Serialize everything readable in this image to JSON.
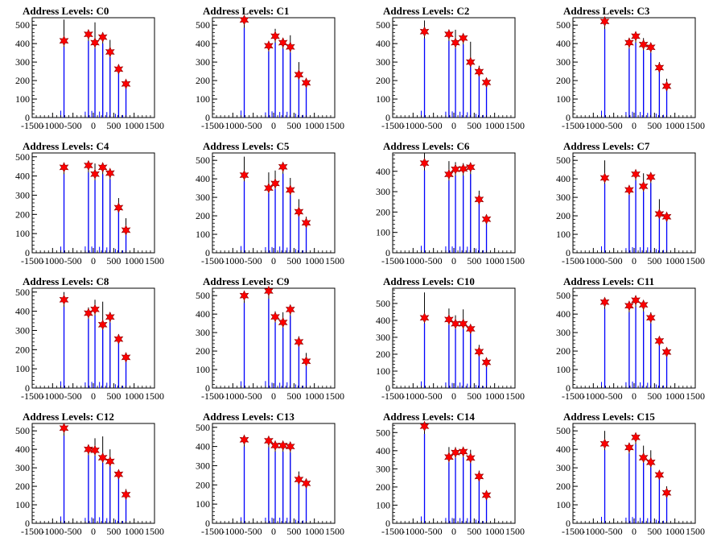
{
  "chart_data": {
    "type": "bar",
    "xlim": [
      -1500,
      1500
    ],
    "x_ticks": [
      -1500,
      -1000,
      -500,
      0,
      500,
      1000,
      1500
    ],
    "x_tick_labels": [
      "-1500",
      "-1000",
      "-500",
      "0",
      "500",
      "1000",
      "1500"
    ],
    "marker_color": "#ff0000",
    "bar_color": "#0000ff",
    "panels": [
      {
        "title": "Address Levels: C0",
        "ylim": [
          0,
          540
        ],
        "y_ticks": [
          0,
          100,
          200,
          300,
          400,
          500
        ],
        "bars": [
          [
            -720,
            530
          ],
          [
            -120,
            455
          ],
          [
            40,
            515
          ],
          [
            230,
            460
          ],
          [
            410,
            420
          ],
          [
            620,
            285
          ],
          [
            800,
            195
          ]
        ],
        "markers": [
          [
            -720,
            415
          ],
          [
            -120,
            450
          ],
          [
            40,
            405
          ],
          [
            230,
            435
          ],
          [
            410,
            355
          ],
          [
            620,
            262
          ],
          [
            800,
            182
          ]
        ]
      },
      {
        "title": "Address Levels: C1",
        "ylim": [
          0,
          540
        ],
        "y_ticks": [
          0,
          100,
          200,
          300,
          400,
          500
        ],
        "bars": [
          [
            -720,
            540
          ],
          [
            -120,
            400
          ],
          [
            40,
            480
          ],
          [
            230,
            430
          ],
          [
            410,
            445
          ],
          [
            620,
            300
          ],
          [
            800,
            200
          ]
        ],
        "markers": [
          [
            -720,
            528
          ],
          [
            -120,
            388
          ],
          [
            40,
            440
          ],
          [
            230,
            405
          ],
          [
            410,
            382
          ],
          [
            620,
            232
          ],
          [
            800,
            188
          ]
        ]
      },
      {
        "title": "Address Levels: C2",
        "ylim": [
          0,
          540
        ],
        "y_ticks": [
          0,
          100,
          200,
          300,
          400,
          500
        ],
        "bars": [
          [
            -720,
            525
          ],
          [
            -120,
            455
          ],
          [
            40,
            475
          ],
          [
            230,
            450
          ],
          [
            410,
            410
          ],
          [
            620,
            280
          ],
          [
            800,
            195
          ]
        ],
        "markers": [
          [
            -720,
            465
          ],
          [
            -120,
            450
          ],
          [
            40,
            405
          ],
          [
            230,
            430
          ],
          [
            410,
            300
          ],
          [
            620,
            248
          ],
          [
            800,
            190
          ]
        ]
      },
      {
        "title": "Address Levels: C3",
        "ylim": [
          0,
          540
        ],
        "y_ticks": [
          0,
          100,
          200,
          300,
          400,
          500
        ],
        "bars": [
          [
            -720,
            530
          ],
          [
            -120,
            430
          ],
          [
            40,
            450
          ],
          [
            230,
            430
          ],
          [
            410,
            360
          ],
          [
            620,
            300
          ],
          [
            800,
            210
          ]
        ],
        "markers": [
          [
            -720,
            520
          ],
          [
            -120,
            405
          ],
          [
            40,
            440
          ],
          [
            230,
            395
          ],
          [
            410,
            380
          ],
          [
            620,
            270
          ],
          [
            800,
            170
          ]
        ]
      },
      {
        "title": "Address Levels: C4",
        "ylim": [
          0,
          520
        ],
        "y_ticks": [
          0,
          100,
          200,
          300,
          400,
          500
        ],
        "bars": [
          [
            -720,
            465
          ],
          [
            -120,
            475
          ],
          [
            40,
            465
          ],
          [
            230,
            445
          ],
          [
            410,
            400
          ],
          [
            620,
            285
          ],
          [
            800,
            180
          ]
        ],
        "markers": [
          [
            -720,
            445
          ],
          [
            -120,
            455
          ],
          [
            40,
            410
          ],
          [
            230,
            445
          ],
          [
            410,
            415
          ],
          [
            620,
            235
          ],
          [
            800,
            118
          ]
        ]
      },
      {
        "title": "Address Levels: C5",
        "ylim": [
          0,
          540
        ],
        "y_ticks": [
          0,
          100,
          200,
          300,
          400,
          500
        ],
        "bars": [
          [
            -720,
            520
          ],
          [
            -120,
            435
          ],
          [
            40,
            445
          ],
          [
            230,
            485
          ],
          [
            410,
            405
          ],
          [
            620,
            290
          ],
          [
            800,
            195
          ]
        ],
        "markers": [
          [
            -720,
            420
          ],
          [
            -120,
            350
          ],
          [
            40,
            375
          ],
          [
            230,
            465
          ],
          [
            410,
            340
          ],
          [
            620,
            222
          ],
          [
            800,
            162
          ]
        ]
      },
      {
        "title": "Address Levels: C6",
        "ylim": [
          0,
          490
        ],
        "y_ticks": [
          0,
          100,
          200,
          300,
          400
        ],
        "bars": [
          [
            -720,
            490
          ],
          [
            -120,
            450
          ],
          [
            40,
            445
          ],
          [
            230,
            440
          ],
          [
            410,
            430
          ],
          [
            620,
            305
          ],
          [
            800,
            180
          ]
        ],
        "markers": [
          [
            -720,
            440
          ],
          [
            -120,
            385
          ],
          [
            40,
            410
          ],
          [
            230,
            412
          ],
          [
            410,
            420
          ],
          [
            620,
            262
          ],
          [
            800,
            165
          ]
        ]
      },
      {
        "title": "Address Levels: C7",
        "ylim": [
          0,
          540
        ],
        "y_ticks": [
          0,
          100,
          200,
          300,
          400,
          500
        ],
        "bars": [
          [
            -720,
            500
          ],
          [
            -120,
            360
          ],
          [
            40,
            435
          ],
          [
            230,
            430
          ],
          [
            410,
            420
          ],
          [
            620,
            290
          ],
          [
            800,
            215
          ]
        ],
        "markers": [
          [
            -720,
            405
          ],
          [
            -120,
            340
          ],
          [
            40,
            425
          ],
          [
            230,
            360
          ],
          [
            410,
            410
          ],
          [
            620,
            210
          ],
          [
            800,
            195
          ]
        ]
      },
      {
        "title": "Address Levels: C8",
        "ylim": [
          0,
          520
        ],
        "y_ticks": [
          0,
          100,
          200,
          300,
          400,
          500
        ],
        "bars": [
          [
            -720,
            500
          ],
          [
            -120,
            420
          ],
          [
            40,
            460
          ],
          [
            230,
            450
          ],
          [
            410,
            395
          ],
          [
            620,
            280
          ],
          [
            800,
            180
          ]
        ],
        "markers": [
          [
            -720,
            460
          ],
          [
            -120,
            390
          ],
          [
            40,
            410
          ],
          [
            230,
            330
          ],
          [
            410,
            370
          ],
          [
            620,
            255
          ],
          [
            800,
            160
          ]
        ]
      },
      {
        "title": "Address Levels: C9",
        "ylim": [
          0,
          540
        ],
        "y_ticks": [
          0,
          100,
          200,
          300,
          400,
          500
        ],
        "bars": [
          [
            -720,
            525
          ],
          [
            -120,
            540
          ],
          [
            40,
            415
          ],
          [
            230,
            410
          ],
          [
            410,
            445
          ],
          [
            620,
            280
          ],
          [
            800,
            190
          ]
        ],
        "markers": [
          [
            -720,
            500
          ],
          [
            -120,
            525
          ],
          [
            40,
            385
          ],
          [
            230,
            355
          ],
          [
            410,
            425
          ],
          [
            620,
            250
          ],
          [
            800,
            145
          ]
        ]
      },
      {
        "title": "Address Levels: C10",
        "ylim": [
          0,
          590
        ],
        "y_ticks": [
          0,
          100,
          200,
          300,
          400,
          500
        ],
        "bars": [
          [
            -720,
            565
          ],
          [
            -120,
            470
          ],
          [
            40,
            430
          ],
          [
            230,
            465
          ],
          [
            410,
            370
          ],
          [
            620,
            255
          ],
          [
            800,
            175
          ]
        ],
        "markers": [
          [
            -720,
            415
          ],
          [
            -120,
            405
          ],
          [
            40,
            380
          ],
          [
            230,
            380
          ],
          [
            410,
            350
          ],
          [
            620,
            215
          ],
          [
            800,
            152
          ]
        ]
      },
      {
        "title": "Address Levels: C11",
        "ylim": [
          0,
          540
        ],
        "y_ticks": [
          0,
          100,
          200,
          300,
          400,
          500
        ],
        "bars": [
          [
            -720,
            470
          ],
          [
            -120,
            450
          ],
          [
            40,
            500
          ],
          [
            230,
            440
          ],
          [
            410,
            410
          ],
          [
            620,
            275
          ],
          [
            800,
            200
          ]
        ],
        "markers": [
          [
            -720,
            465
          ],
          [
            -120,
            445
          ],
          [
            40,
            475
          ],
          [
            230,
            450
          ],
          [
            410,
            380
          ],
          [
            620,
            255
          ],
          [
            800,
            195
          ]
        ]
      },
      {
        "title": "Address Levels: C12",
        "ylim": [
          0,
          540
        ],
        "y_ticks": [
          0,
          100,
          200,
          300,
          400,
          500
        ],
        "bars": [
          [
            -720,
            530
          ],
          [
            -120,
            420
          ],
          [
            40,
            460
          ],
          [
            230,
            470
          ],
          [
            410,
            400
          ],
          [
            620,
            275
          ],
          [
            800,
            185
          ]
        ],
        "markers": [
          [
            -720,
            515
          ],
          [
            -120,
            400
          ],
          [
            40,
            395
          ],
          [
            230,
            355
          ],
          [
            410,
            335
          ],
          [
            620,
            265
          ],
          [
            800,
            155
          ]
        ]
      },
      {
        "title": "Address Levels: C13",
        "ylim": [
          0,
          520
        ],
        "y_ticks": [
          0,
          100,
          200,
          300,
          400,
          500
        ],
        "bars": [
          [
            -720,
            450
          ],
          [
            -120,
            420
          ],
          [
            40,
            420
          ],
          [
            230,
            420
          ],
          [
            410,
            415
          ],
          [
            620,
            270
          ],
          [
            800,
            210
          ]
        ],
        "markers": [
          [
            -720,
            435
          ],
          [
            -120,
            430
          ],
          [
            40,
            405
          ],
          [
            230,
            405
          ],
          [
            410,
            400
          ],
          [
            620,
            228
          ],
          [
            800,
            208
          ]
        ]
      },
      {
        "title": "Address Levels: C14",
        "ylim": [
          0,
          550
        ],
        "y_ticks": [
          0,
          100,
          200,
          300,
          400,
          500
        ],
        "bars": [
          [
            -720,
            540
          ],
          [
            -120,
            420
          ],
          [
            40,
            420
          ],
          [
            230,
            410
          ],
          [
            410,
            405
          ],
          [
            620,
            290
          ],
          [
            800,
            175
          ]
        ],
        "markers": [
          [
            -720,
            535
          ],
          [
            -120,
            365
          ],
          [
            40,
            390
          ],
          [
            230,
            395
          ],
          [
            410,
            360
          ],
          [
            620,
            258
          ],
          [
            800,
            155
          ]
        ]
      },
      {
        "title": "Address Levels: C15",
        "ylim": [
          0,
          540
        ],
        "y_ticks": [
          0,
          100,
          200,
          300,
          400,
          500
        ],
        "bars": [
          [
            -720,
            500
          ],
          [
            -120,
            435
          ],
          [
            40,
            485
          ],
          [
            230,
            420
          ],
          [
            410,
            395
          ],
          [
            620,
            280
          ],
          [
            800,
            200
          ]
        ],
        "markers": [
          [
            -720,
            430
          ],
          [
            -120,
            410
          ],
          [
            40,
            465
          ],
          [
            230,
            355
          ],
          [
            410,
            330
          ],
          [
            620,
            262
          ],
          [
            800,
            165
          ]
        ]
      }
    ]
  }
}
